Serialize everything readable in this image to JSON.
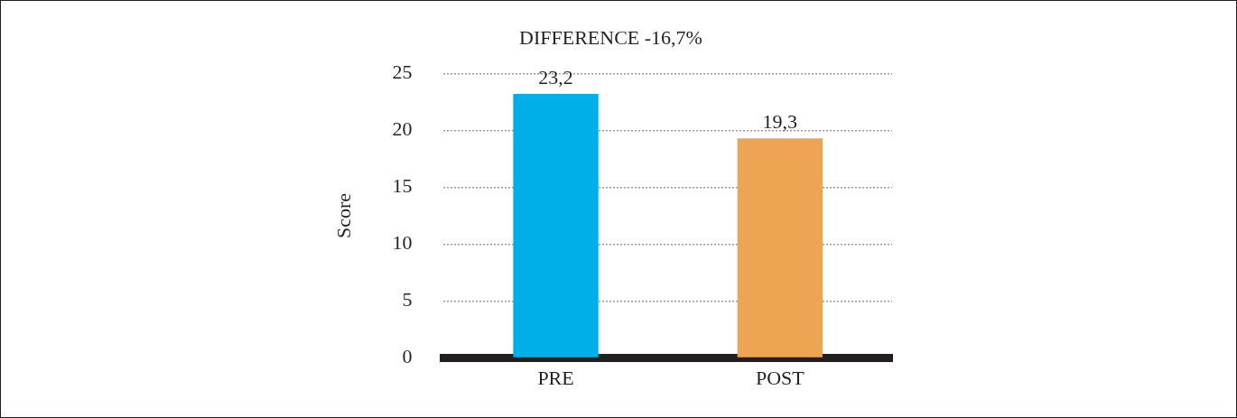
{
  "chart_data": {
    "type": "bar",
    "title": "DIFFERENCE -16,7%",
    "ylabel": "Score",
    "categories": [
      "PRE",
      "POST"
    ],
    "values": [
      23.2,
      19.3
    ],
    "colors": [
      "#00aee8",
      "#eea553"
    ],
    "value_labels": [
      "23,2",
      "19,3"
    ],
    "ylim": [
      0,
      25
    ],
    "yticks": [
      0,
      5,
      10,
      15,
      20,
      25
    ],
    "grid": "y",
    "legend": false
  }
}
